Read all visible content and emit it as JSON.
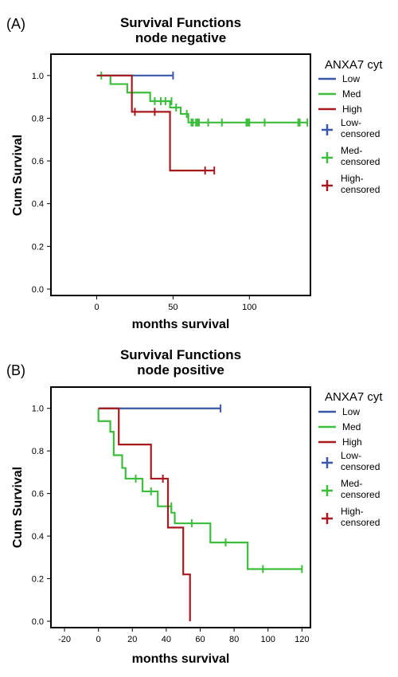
{
  "chart_data": [
    {
      "type": "line",
      "panel_label": "(A)",
      "title": "Survival Functions",
      "subtitle": "node negative",
      "xlabel": "months survival",
      "ylabel": "Cum Survival",
      "xlim": [
        -30,
        140
      ],
      "ylim": [
        -0.03,
        1.1
      ],
      "x_ticks": [
        0,
        50,
        100
      ],
      "y_ticks": [
        0.0,
        0.2,
        0.4,
        0.6,
        0.8,
        1.0
      ],
      "legend": {
        "title": "ANXA7 cyt",
        "position": "right",
        "entries": [
          {
            "label": "Low",
            "kind": "line",
            "color": "#3a57a8"
          },
          {
            "label": "Med",
            "kind": "line",
            "color": "#3cbd3c"
          },
          {
            "label": "High",
            "kind": "line",
            "color": "#a8191f"
          },
          {
            "label": "Low-censored",
            "kind": "censor",
            "color": "#3a57a8",
            "lines": [
              "Low-",
              "censored"
            ]
          },
          {
            "label": "Med-censored",
            "kind": "censor",
            "color": "#3cbd3c",
            "lines": [
              "Med-",
              "censored"
            ]
          },
          {
            "label": "High-censored",
            "kind": "censor",
            "color": "#a8191f",
            "lines": [
              "High-",
              "censored"
            ]
          }
        ]
      },
      "series": [
        {
          "name": "Low",
          "color": "#3a57a8",
          "steps": [
            [
              0,
              1.0
            ],
            [
              50,
              1.0
            ]
          ],
          "censored": [
            [
              50,
              1.0
            ]
          ]
        },
        {
          "name": "Med",
          "color": "#3cbd3c",
          "steps": [
            [
              3,
              1.0
            ],
            [
              9,
              0.96
            ],
            [
              20,
              0.92
            ],
            [
              35,
              0.88
            ],
            [
              48,
              0.85
            ],
            [
              55,
              0.82
            ],
            [
              60,
              0.78
            ],
            [
              138,
              0.78
            ]
          ],
          "censored": [
            [
              3,
              1.0
            ],
            [
              38,
              0.88
            ],
            [
              42,
              0.88
            ],
            [
              45,
              0.88
            ],
            [
              49,
              0.88
            ],
            [
              52,
              0.85
            ],
            [
              59,
              0.82
            ],
            [
              62,
              0.78
            ],
            [
              63,
              0.78
            ],
            [
              65,
              0.78
            ],
            [
              66,
              0.78
            ],
            [
              67,
              0.78
            ],
            [
              73,
              0.78
            ],
            [
              82,
              0.78
            ],
            [
              98,
              0.78
            ],
            [
              99,
              0.78
            ],
            [
              100,
              0.78
            ],
            [
              110,
              0.78
            ],
            [
              132,
              0.78
            ],
            [
              133,
              0.78
            ],
            [
              138,
              0.78
            ]
          ]
        },
        {
          "name": "High",
          "color": "#a8191f",
          "steps": [
            [
              0,
              1.0
            ],
            [
              23,
              1.0
            ],
            [
              23,
              0.83
            ],
            [
              48,
              0.83
            ],
            [
              48,
              0.555
            ],
            [
              77,
              0.555
            ]
          ],
          "censored": [
            [
              25,
              0.83
            ],
            [
              38,
              0.83
            ],
            [
              71,
              0.555
            ],
            [
              77,
              0.555
            ]
          ]
        }
      ]
    },
    {
      "type": "line",
      "panel_label": "(B)",
      "title": "Survival Functions",
      "subtitle": "node positive",
      "xlabel": "months survival",
      "ylabel": "Cum Survival",
      "xlim": [
        -28,
        125
      ],
      "ylim": [
        -0.03,
        1.1
      ],
      "x_ticks": [
        -20,
        0,
        20,
        40,
        60,
        80,
        100,
        120
      ],
      "y_ticks": [
        0.0,
        0.2,
        0.4,
        0.6,
        0.8,
        1.0
      ],
      "legend": {
        "title": "ANXA7 cyt",
        "position": "right",
        "entries": [
          {
            "label": "Low",
            "kind": "line",
            "color": "#3a57a8"
          },
          {
            "label": "Med",
            "kind": "line",
            "color": "#3cbd3c"
          },
          {
            "label": "High",
            "kind": "line",
            "color": "#a8191f"
          },
          {
            "label": "Low-censored",
            "kind": "censor",
            "color": "#3a57a8",
            "lines": [
              "Low-",
              "censored"
            ]
          },
          {
            "label": "Med-censored",
            "kind": "censor",
            "color": "#3cbd3c",
            "lines": [
              "Med-",
              "censored"
            ]
          },
          {
            "label": "High-censored",
            "kind": "censor",
            "color": "#a8191f",
            "lines": [
              "High-",
              "censored"
            ]
          }
        ]
      },
      "series": [
        {
          "name": "Low",
          "color": "#3a57a8",
          "steps": [
            [
              0,
              1.0
            ],
            [
              72,
              1.0
            ]
          ],
          "censored": [
            [
              72,
              1.0
            ]
          ]
        },
        {
          "name": "Med",
          "color": "#3cbd3c",
          "steps": [
            [
              0,
              1.0
            ],
            [
              0,
              0.94
            ],
            [
              7,
              0.94
            ],
            [
              7,
              0.89
            ],
            [
              9,
              0.89
            ],
            [
              9,
              0.78
            ],
            [
              14,
              0.78
            ],
            [
              14,
              0.72
            ],
            [
              16,
              0.72
            ],
            [
              16,
              0.67
            ],
            [
              26,
              0.67
            ],
            [
              26,
              0.61
            ],
            [
              35,
              0.61
            ],
            [
              35,
              0.54
            ],
            [
              43,
              0.54
            ],
            [
              43,
              0.51
            ],
            [
              45,
              0.51
            ],
            [
              45,
              0.46
            ],
            [
              66,
              0.46
            ],
            [
              66,
              0.37
            ],
            [
              88,
              0.37
            ],
            [
              88,
              0.245
            ],
            [
              120,
              0.245
            ]
          ],
          "censored": [
            [
              22,
              0.67
            ],
            [
              31,
              0.61
            ],
            [
              43,
              0.54
            ],
            [
              55,
              0.46
            ],
            [
              75,
              0.37
            ],
            [
              97,
              0.245
            ],
            [
              120,
              0.245
            ]
          ]
        },
        {
          "name": "High",
          "color": "#a8191f",
          "steps": [
            [
              0,
              1.0
            ],
            [
              12,
              1.0
            ],
            [
              12,
              0.83
            ],
            [
              31,
              0.83
            ],
            [
              31,
              0.67
            ],
            [
              41,
              0.67
            ],
            [
              41,
              0.44
            ],
            [
              50,
              0.44
            ],
            [
              50,
              0.22
            ],
            [
              54,
              0.22
            ],
            [
              54,
              0.0
            ]
          ],
          "censored": [
            [
              38,
              0.67
            ]
          ]
        }
      ]
    }
  ]
}
